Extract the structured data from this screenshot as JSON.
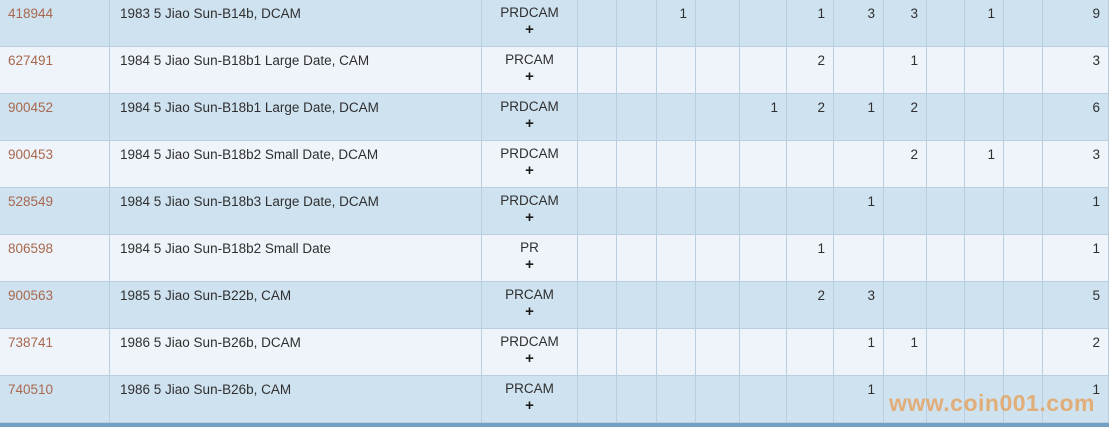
{
  "watermark": "www.coin001.com",
  "colors": {
    "row_dark": "#cfe2f0",
    "row_light": "#eef4f9",
    "grid": "#b9cfe0",
    "text": "#2f2f2f",
    "id_link": "#a8684e",
    "watermark": "#e89a4a",
    "bottom_bar": "#74a0c4"
  },
  "table": {
    "rows": [
      {
        "id": "418944",
        "description": "1983 5 Jiao Sun-B14b, DCAM",
        "type": "PRDCAM",
        "expand": "+",
        "values": [
          "",
          "",
          "1",
          "",
          "",
          "1",
          "3",
          "3",
          "",
          "1",
          ""
        ],
        "total": "9"
      },
      {
        "id": "627491",
        "description": "1984 5 Jiao Sun-B18b1 Large Date, CAM",
        "type": "PRCAM",
        "expand": "+",
        "values": [
          "",
          "",
          "",
          "",
          "",
          "2",
          "",
          "1",
          "",
          "",
          ""
        ],
        "total": "3"
      },
      {
        "id": "900452",
        "description": "1984 5 Jiao Sun-B18b1 Large Date, DCAM",
        "type": "PRDCAM",
        "expand": "+",
        "values": [
          "",
          "",
          "",
          "",
          "1",
          "2",
          "1",
          "2",
          "",
          "",
          ""
        ],
        "total": "6"
      },
      {
        "id": "900453",
        "description": "1984 5 Jiao Sun-B18b2 Small Date, DCAM",
        "type": "PRDCAM",
        "expand": "+",
        "values": [
          "",
          "",
          "",
          "",
          "",
          "",
          "",
          "2",
          "",
          "1",
          ""
        ],
        "total": "3"
      },
      {
        "id": "528549",
        "description": "1984 5 Jiao Sun-B18b3 Large Date, DCAM",
        "type": "PRDCAM",
        "expand": "+",
        "values": [
          "",
          "",
          "",
          "",
          "",
          "",
          "1",
          "",
          "",
          "",
          ""
        ],
        "total": "1"
      },
      {
        "id": "806598",
        "description": "1984 5 Jiao Sun-B18b2 Small Date",
        "type": "PR",
        "expand": "+",
        "values": [
          "",
          "",
          "",
          "",
          "",
          "1",
          "",
          "",
          "",
          "",
          ""
        ],
        "total": "1"
      },
      {
        "id": "900563",
        "description": "1985 5 Jiao Sun-B22b, CAM",
        "type": "PRCAM",
        "expand": "+",
        "values": [
          "",
          "",
          "",
          "",
          "",
          "2",
          "3",
          "",
          "",
          "",
          ""
        ],
        "total": "5"
      },
      {
        "id": "738741",
        "description": "1986 5 Jiao Sun-B26b, DCAM",
        "type": "PRDCAM",
        "expand": "+",
        "values": [
          "",
          "",
          "",
          "",
          "",
          "",
          "1",
          "1",
          "",
          "",
          ""
        ],
        "total": "2"
      },
      {
        "id": "740510",
        "description": "1986 5 Jiao Sun-B26b, CAM",
        "type": "PRCAM",
        "expand": "+",
        "values": [
          "",
          "",
          "",
          "",
          "",
          "",
          "1",
          "",
          "",
          "",
          ""
        ],
        "total": "1"
      }
    ]
  }
}
